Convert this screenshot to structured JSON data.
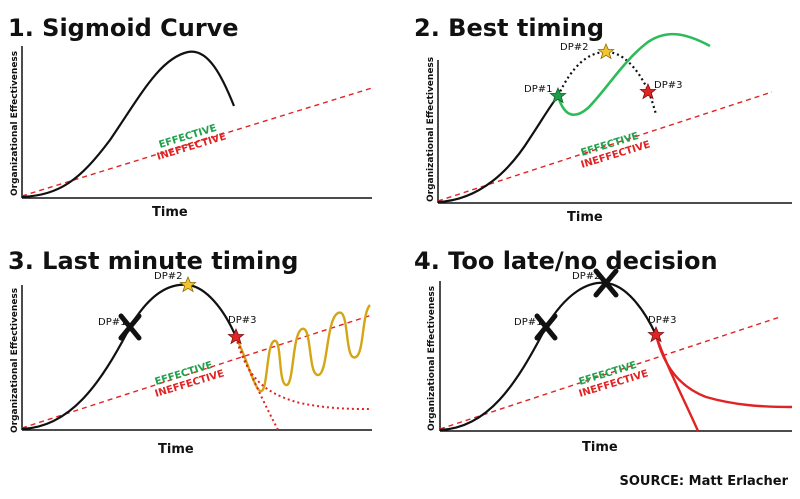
{
  "panels": [
    {
      "title": "1. Sigmoid Curve",
      "ylabel": "Organizational Effectiveness",
      "xlabel": "Time",
      "effective": "EFFECTIVE",
      "ineffective": "INEFFECTIVE"
    },
    {
      "title": "2. Best timing",
      "ylabel": "Organizational Effectiveness",
      "xlabel": "Time",
      "effective": "EFFECTIVE",
      "ineffective": "INEFFECTIVE",
      "points": {
        "dp1": "DP#1",
        "dp2": "DP#2",
        "dp3": "DP#3"
      }
    },
    {
      "title": "3. Last minute timing",
      "ylabel": "Organizational Effectiveness",
      "xlabel": "Time",
      "effective": "EFFECTIVE",
      "ineffective": "INEFFECTIVE",
      "points": {
        "dp1": "DP#1",
        "dp2": "DP#2",
        "dp3": "DP#3"
      }
    },
    {
      "title": "4. Too late/no decision",
      "ylabel": "Organizational Effectiveness",
      "xlabel": "Time",
      "effective": "EFFECTIVE",
      "ineffective": "INEFFECTIVE",
      "points": {
        "dp1": "DP#1",
        "dp2": "DP#2",
        "dp3": "DP#3"
      }
    }
  ],
  "source": "SOURCE: Matt Erlacher",
  "colors": {
    "curve": "#111111",
    "effective": "#1fa14a",
    "ineffective": "#e02424",
    "renewal_green": "#2dbb5a",
    "oscillation": "#d4a514",
    "star_gold": "#f4c430",
    "star_green": "#1f9e4a",
    "star_red": "#e02424",
    "cross": "#111111"
  }
}
